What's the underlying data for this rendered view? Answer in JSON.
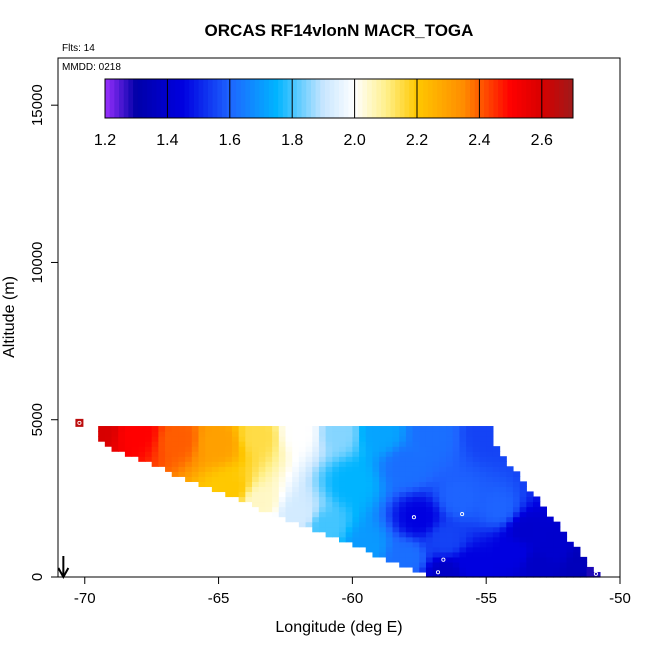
{
  "chart_data": {
    "type": "heatmap",
    "title": "ORCAS RF14vlonN MACR_TOGA",
    "xlabel": "Longitude (deg E)",
    "ylabel": "Altitude (m)",
    "xlim": [
      -71,
      -50
    ],
    "ylim": [
      0,
      16500
    ],
    "x_ticks": [
      {
        "value": -70,
        "label": "-70"
      },
      {
        "value": -65,
        "label": "-65"
      },
      {
        "value": -60,
        "label": "-60"
      },
      {
        "value": -55,
        "label": "-55"
      },
      {
        "value": -50,
        "label": "-50"
      }
    ],
    "y_ticks": [
      {
        "value": 0,
        "label": "0"
      },
      {
        "value": 5000,
        "label": "5000"
      },
      {
        "value": 10000,
        "label": "10000"
      },
      {
        "value": 15000,
        "label": "15000"
      }
    ],
    "annotations": {
      "flights": "Flts: 14",
      "date": "MMDD: 0218"
    },
    "colorbar": {
      "range": [
        1.2,
        2.7
      ],
      "ticks": [
        {
          "value": 1.2,
          "label": "1.2"
        },
        {
          "value": 1.4,
          "label": "1.4"
        },
        {
          "value": 1.6,
          "label": "1.6"
        },
        {
          "value": 1.8,
          "label": "1.8"
        },
        {
          "value": 2.0,
          "label": "2.0"
        },
        {
          "value": 2.2,
          "label": "2.2"
        },
        {
          "value": 2.4,
          "label": "2.4"
        },
        {
          "value": 2.6,
          "label": "2.6"
        }
      ],
      "stops": [
        {
          "value": 1.2,
          "color": "#9b30ff"
        },
        {
          "value": 1.3,
          "color": "#0000a8"
        },
        {
          "value": 1.45,
          "color": "#0000e0"
        },
        {
          "value": 1.6,
          "color": "#1e64ff"
        },
        {
          "value": 1.75,
          "color": "#00b4ff"
        },
        {
          "value": 1.9,
          "color": "#c8e6ff"
        },
        {
          "value": 2.0,
          "color": "#ffffff"
        },
        {
          "value": 2.1,
          "color": "#fff08c"
        },
        {
          "value": 2.2,
          "color": "#ffc800"
        },
        {
          "value": 2.35,
          "color": "#ff8c00"
        },
        {
          "value": 2.5,
          "color": "#ff0000"
        },
        {
          "value": 2.6,
          "color": "#d70000"
        },
        {
          "value": 2.7,
          "color": "#a01a1a"
        }
      ]
    },
    "field_points": [
      {
        "lon": -69.5,
        "alt": 4700,
        "value": 2.6
      },
      {
        "lon": -68.0,
        "alt": 4600,
        "value": 2.5
      },
      {
        "lon": -66.5,
        "alt": 4400,
        "value": 2.4
      },
      {
        "lon": -65.0,
        "alt": 4300,
        "value": 2.3
      },
      {
        "lon": -63.5,
        "alt": 4500,
        "value": 2.15
      },
      {
        "lon": -62.0,
        "alt": 4600,
        "value": 2.0
      },
      {
        "lon": -60.5,
        "alt": 4600,
        "value": 1.85
      },
      {
        "lon": -59.0,
        "alt": 4600,
        "value": 1.72
      },
      {
        "lon": -57.0,
        "alt": 4600,
        "value": 1.62
      },
      {
        "lon": -55.0,
        "alt": 4600,
        "value": 1.55
      },
      {
        "lon": -64.5,
        "alt": 2800,
        "value": 2.2
      },
      {
        "lon": -63.5,
        "alt": 2400,
        "value": 2.05
      },
      {
        "lon": -62.0,
        "alt": 2000,
        "value": 1.92
      },
      {
        "lon": -61.0,
        "alt": 1600,
        "value": 1.8
      },
      {
        "lon": -60.0,
        "alt": 3000,
        "value": 1.75
      },
      {
        "lon": -58.0,
        "alt": 3500,
        "value": 1.62
      },
      {
        "lon": -59.5,
        "alt": 1000,
        "value": 1.7
      },
      {
        "lon": -58.0,
        "alt": 600,
        "value": 1.62
      },
      {
        "lon": -57.5,
        "alt": 1900,
        "value": 1.45
      },
      {
        "lon": -56.5,
        "alt": 1200,
        "value": 1.55
      },
      {
        "lon": -56.0,
        "alt": 2500,
        "value": 1.6
      },
      {
        "lon": -54.5,
        "alt": 2200,
        "value": 1.6
      },
      {
        "lon": -55.5,
        "alt": 400,
        "value": 1.45
      },
      {
        "lon": -56.5,
        "alt": 100,
        "value": 1.38
      },
      {
        "lon": -54.0,
        "alt": 800,
        "value": 1.45
      },
      {
        "lon": -53.5,
        "alt": 1500,
        "value": 1.4
      },
      {
        "lon": -53.0,
        "alt": 400,
        "value": 1.38
      },
      {
        "lon": -52.5,
        "alt": 900,
        "value": 1.4
      },
      {
        "lon": -51.5,
        "alt": 300,
        "value": 1.35
      },
      {
        "lon": -51.0,
        "alt": 150,
        "value": 1.28
      }
    ],
    "observations": [
      {
        "lon": -70.2,
        "alt": 4900,
        "value": 2.65
      },
      {
        "lon": -57.7,
        "alt": 1900,
        "value": 1.4
      },
      {
        "lon": -55.9,
        "alt": 2000,
        "value": 1.55
      },
      {
        "lon": -56.6,
        "alt": 550,
        "value": 1.45
      },
      {
        "lon": -56.8,
        "alt": 150,
        "value": 1.35
      },
      {
        "lon": -50.9,
        "alt": 100,
        "value": 1.25
      }
    ],
    "marker": {
      "symbol": "down-arrow",
      "lon": -70.8
    }
  }
}
